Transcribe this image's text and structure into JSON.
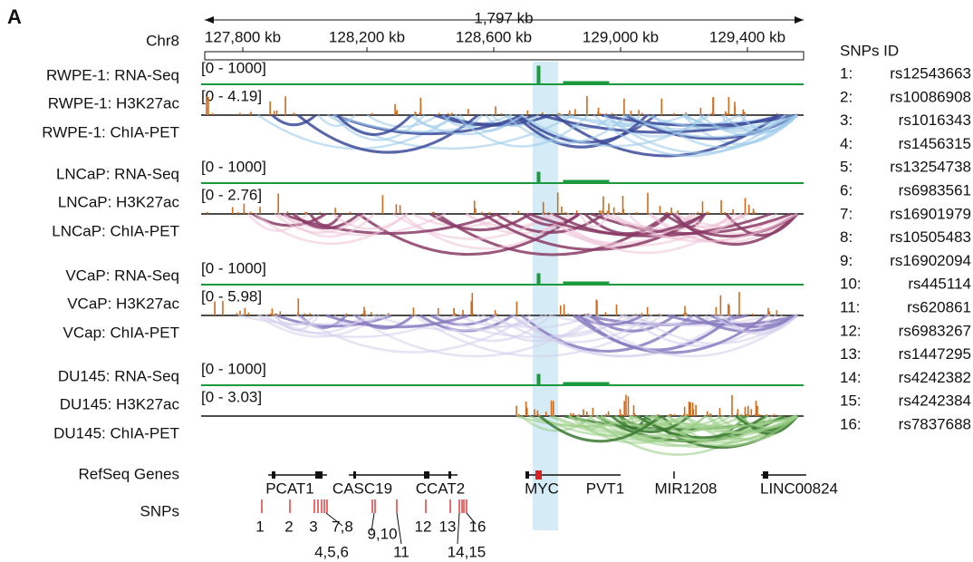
{
  "panel_label": "A",
  "ruler": {
    "span": "1,797 kb",
    "chromosome": "Chr8",
    "ticks": [
      "127,800 kb",
      "128,200 kb",
      "128,600 kb",
      "129,000 kb",
      "129,400 kb"
    ]
  },
  "tracks": [
    {
      "label": "RWPE-1: RNA-Seq",
      "range": "[0 - 1000]"
    },
    {
      "label": "RWPE-1: H3K27ac",
      "range": "[0 - 4.19]"
    },
    {
      "label": "RWPE-1: ChIA-PET"
    },
    {
      "label": "LNCaP: RNA-Seq",
      "range": "[0 - 1000]"
    },
    {
      "label": "LNCaP: H3K27ac",
      "range": "[0 - 2.76]"
    },
    {
      "label": "LNCaP: ChIA-PET"
    },
    {
      "label": "VCaP: RNA-Seq",
      "range": "[0 - 1000]"
    },
    {
      "label": "VCaP: H3K27ac",
      "range": "[0 - 5.98]"
    },
    {
      "label": "VCap: ChIA-PET"
    },
    {
      "label": "DU145: RNA-Seq",
      "range": "[0 - 1000]"
    },
    {
      "label": "DU145: H3K27ac",
      "range": "[0 - 3.03]"
    },
    {
      "label": "DU145: ChIA-PET"
    }
  ],
  "refseq_label": "RefSeq Genes",
  "genes": [
    "PCAT1",
    "CASC19",
    "CCAT2",
    "MYC",
    "PVT1",
    "MIR1208",
    "LINC00824"
  ],
  "snps_label": "SNPs",
  "snp_labels": [
    "1",
    "2",
    "3",
    "7,8",
    "9,10",
    "12",
    "13",
    "16",
    "4,5,6",
    "11",
    "14,15"
  ],
  "snp_table": {
    "title": "SNPs ID",
    "rows": [
      {
        "index": "1:",
        "id": "rs12543663"
      },
      {
        "index": "2:",
        "id": "rs10086908"
      },
      {
        "index": "3:",
        "id": "rs1016343"
      },
      {
        "index": "4:",
        "id": "rs1456315"
      },
      {
        "index": "5:",
        "id": "rs13254738"
      },
      {
        "index": "6:",
        "id": "rs6983561"
      },
      {
        "index": "7:",
        "id": "rs16901979"
      },
      {
        "index": "8:",
        "id": "rs10505483"
      },
      {
        "index": "9:",
        "id": "rs16902094"
      },
      {
        "index": "10:",
        "id": "rs445114"
      },
      {
        "index": "11:",
        "id": "rs620861"
      },
      {
        "index": "12:",
        "id": "rs6983267"
      },
      {
        "index": "13:",
        "id": "rs1447295"
      },
      {
        "index": "14:",
        "id": "rs4242382"
      },
      {
        "index": "15:",
        "id": "rs4242384"
      },
      {
        "index": "16:",
        "id": "rs7837688"
      }
    ]
  }
}
